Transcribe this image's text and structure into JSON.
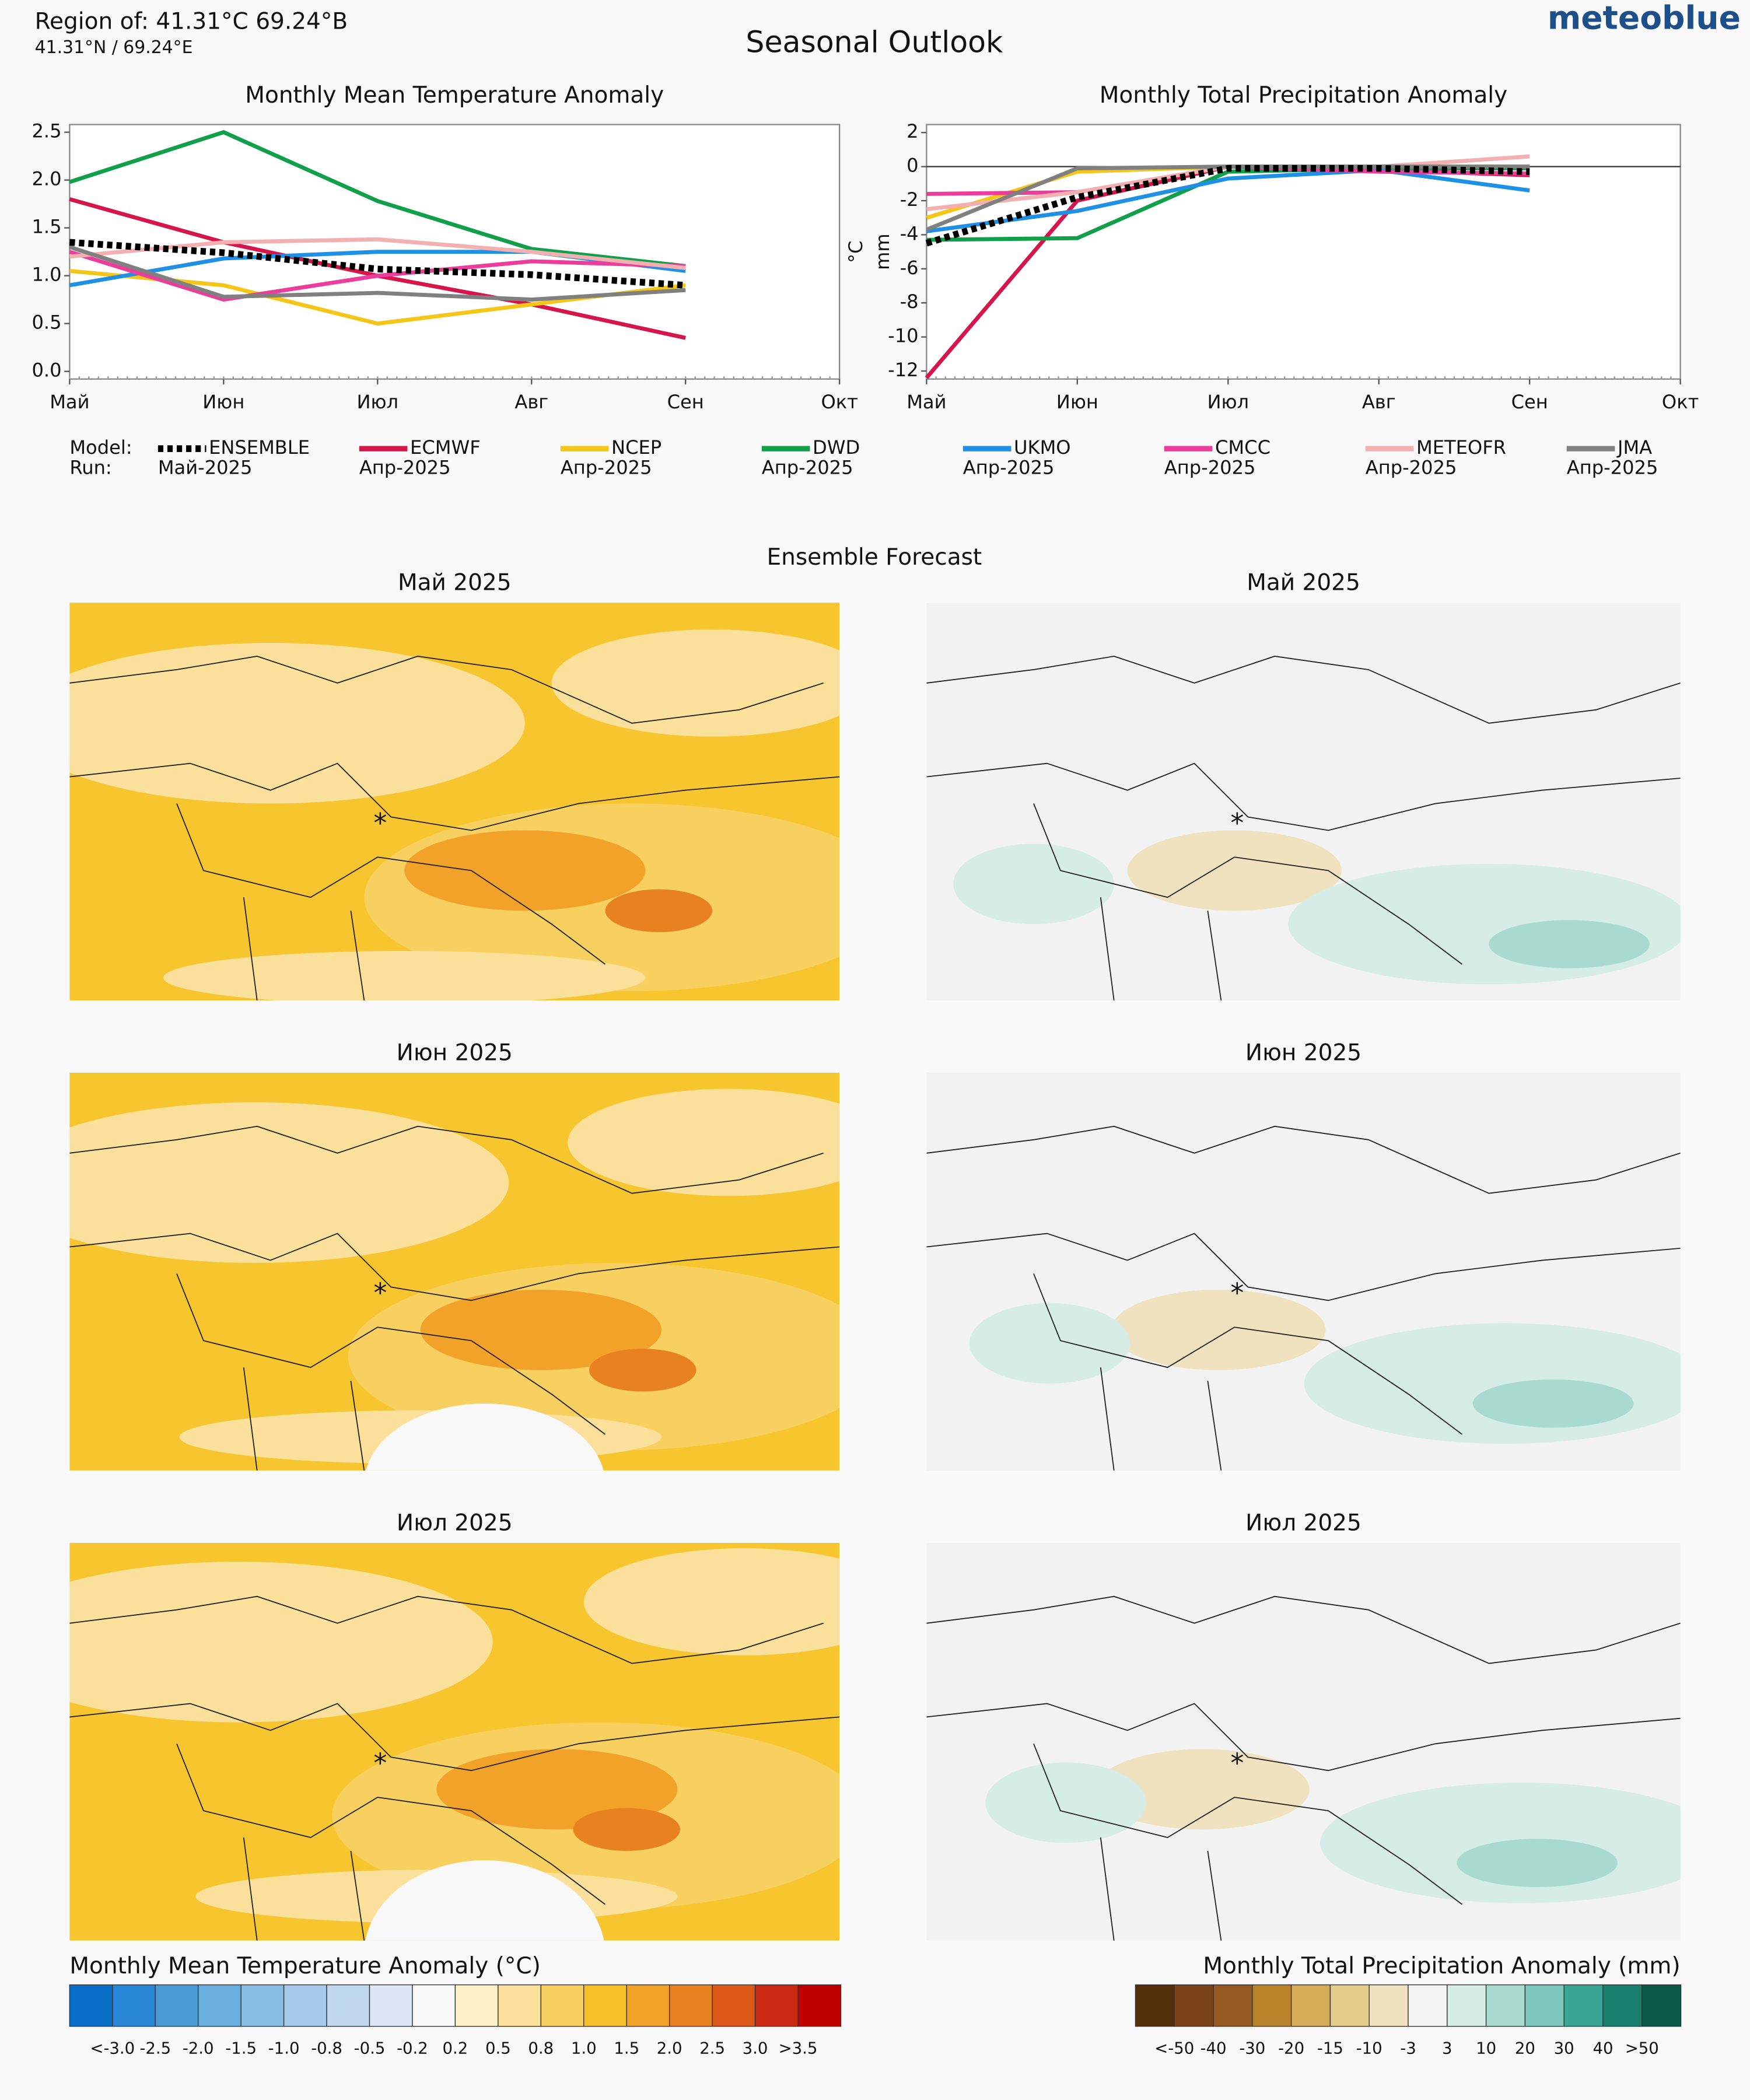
{
  "header": {
    "region": "Region of: 41.31°C 69.24°B",
    "coords": "41.31°N / 69.24°E",
    "title": "Seasonal Outlook",
    "brand": "meteoblue"
  },
  "legend": {
    "model_label": "Model:",
    "run_label": "Run:"
  },
  "chart_data": [
    {
      "type": "line",
      "title": "Monthly Mean Temperature Anomaly",
      "categories": [
        "Май",
        "Июн",
        "Июл",
        "Авг",
        "Сен",
        "Окт"
      ],
      "ylim": [
        -0.08,
        2.58
      ],
      "yticks": [
        {
          "value": 0,
          "label": "0.0"
        },
        0.5,
        {
          "value": 1,
          "label": "1.0"
        },
        1.5,
        {
          "value": 2,
          "label": "2.0"
        },
        2.5
      ],
      "series": [
        {
          "name": "ENSEMBLE",
          "run": "Май-2025",
          "color": "#000000",
          "dashed": true,
          "values": [
            1.35,
            1.24,
            1.07,
            1.01,
            0.9,
            null
          ]
        },
        {
          "name": "ECMWF",
          "run": "Апр-2025",
          "color": "#d6164a",
          "values": [
            1.8,
            1.35,
            1.0,
            0.7,
            0.35,
            null
          ]
        },
        {
          "name": "NCEP",
          "run": "Апр-2025",
          "color": "#f5c518",
          "values": [
            1.05,
            0.9,
            0.5,
            0.7,
            0.9,
            null
          ]
        },
        {
          "name": "DWD",
          "run": "Апр-2025",
          "color": "#10a04a",
          "values": [
            1.98,
            2.5,
            1.78,
            1.28,
            1.1,
            null
          ]
        },
        {
          "name": "UKMO",
          "run": "Апр-2025",
          "color": "#1e90e6",
          "values": [
            0.9,
            1.18,
            1.25,
            1.25,
            1.05,
            null
          ]
        },
        {
          "name": "CMCC",
          "run": "Апр-2025",
          "color": "#ec3c9c",
          "values": [
            1.25,
            0.75,
            1.0,
            1.15,
            1.1,
            null
          ]
        },
        {
          "name": "METEOFR",
          "run": "Апр-2025",
          "color": "#f4b0b0",
          "values": [
            1.2,
            1.35,
            1.38,
            1.25,
            1.08,
            null
          ]
        },
        {
          "name": "JMA",
          "run": "Апр-2025",
          "color": "#808080",
          "values": [
            1.3,
            0.78,
            0.82,
            0.75,
            0.85,
            null
          ]
        }
      ]
    },
    {
      "type": "line",
      "title": "Monthly Total Precipitation Anomaly",
      "ylabel": "mm",
      "ylabel2": "°C",
      "categories": [
        "Май",
        "Июн",
        "Июл",
        "Авг",
        "Сен",
        "Окт"
      ],
      "ylim": [
        -12.47,
        2.47
      ],
      "zero_line": true,
      "yticks": [
        2,
        0,
        -2,
        -4,
        -6,
        -8,
        -10,
        -12
      ],
      "series": [
        {
          "name": "ENSEMBLE",
          "color": "#000000",
          "dashed": true,
          "values": [
            -4.5,
            -1.8,
            -0.1,
            -0.1,
            -0.3,
            null
          ]
        },
        {
          "name": "ECMWF",
          "color": "#d6164a",
          "values": [
            -12.4,
            -2,
            0,
            -0.2,
            -0.5,
            null
          ]
        },
        {
          "name": "NCEP",
          "color": "#f5c518",
          "values": [
            -3,
            -0.3,
            0,
            0,
            0,
            null
          ]
        },
        {
          "name": "DWD",
          "color": "#10a04a",
          "values": [
            -4.3,
            -4.2,
            -0.3,
            -0.1,
            -0.1,
            null
          ]
        },
        {
          "name": "UKMO",
          "color": "#1e90e6",
          "values": [
            -3.8,
            -2.6,
            -0.7,
            -0.2,
            -1.4,
            null
          ]
        },
        {
          "name": "CMCC",
          "color": "#ec3c9c",
          "values": [
            -1.6,
            -1.5,
            0,
            -0.3,
            -0.4,
            null
          ]
        },
        {
          "name": "METEOFR",
          "color": "#f4b0b0",
          "values": [
            -2.5,
            -1.5,
            0,
            0,
            0.6,
            null
          ]
        },
        {
          "name": "JMA",
          "color": "#808080",
          "values": [
            -3.7,
            -0.1,
            0,
            0,
            0,
            null
          ]
        }
      ]
    }
  ],
  "maps": {
    "title": "Ensemble Forecast",
    "panels": [
      "Май 2025",
      "Май 2025",
      "Июн 2025",
      "Июн 2025",
      "Июл 2025",
      "Июл 2025"
    ]
  },
  "colorbars": [
    {
      "title": "Monthly Mean Temperature Anomaly (°C)",
      "colors": [
        "#0a6fc8",
        "#2a86d8",
        "#4a9ad6",
        "#6aaede",
        "#88bde4",
        "#a6cbec",
        "#c2d8ef",
        "#dde6f4",
        "#f8f8f8",
        "#fbf0c6",
        "#fae09a",
        "#f8d060",
        "#f7c02a",
        "#f2a228",
        "#e88220",
        "#dc5818",
        "#cc2a12",
        "#c00000"
      ],
      "labels": [
        "<-3.0",
        "-2.5",
        "-2.0",
        "-1.5",
        "-1.0",
        "-0.8",
        "-0.5",
        "-0.2",
        "0.2",
        "0.5",
        "0.8",
        "1.0",
        "1.5",
        "2.0",
        "2.5",
        "3.0",
        ">3.5"
      ]
    },
    {
      "title": "Monthly Total Precipitation Anomaly (mm)",
      "colors": [
        "#54300a",
        "#7a4218",
        "#965a20",
        "#b8832a",
        "#d6ac58",
        "#e6cc8a",
        "#f0e2be",
        "#f4f4f4",
        "#d6ece6",
        "#a8dad0",
        "#7cc6bc",
        "#3aa496",
        "#18806e",
        "#0a5a4a"
      ],
      "labels": [
        "<-50",
        "-40",
        "-30",
        "-20",
        "-15",
        "-10",
        "-3",
        "3",
        "10",
        "20",
        "30",
        "40",
        ">50"
      ]
    }
  ]
}
